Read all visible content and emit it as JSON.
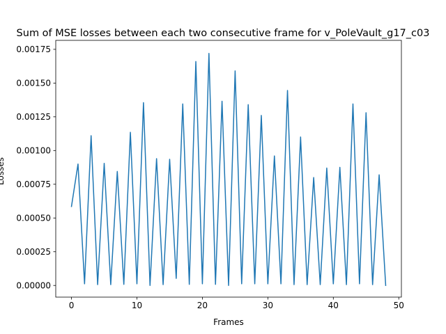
{
  "chart_data": {
    "type": "line",
    "title": "Sum of MSE losses between each two consecutive frame for v_PoleVault_g17_c03",
    "xlabel": "Frames",
    "ylabel": "Losses",
    "xlim": [
      -2.4,
      50.4
    ],
    "ylim": [
      -8.65e-05,
      0.0018165
    ],
    "xticks": [
      0,
      10,
      20,
      30,
      40,
      50
    ],
    "xtick_labels": [
      "0",
      "10",
      "20",
      "30",
      "40",
      "50"
    ],
    "yticks": [
      0,
      0.00025,
      0.0005,
      0.00075,
      0.001,
      0.00125,
      0.0015,
      0.00175
    ],
    "ytick_labels": [
      "0.00000",
      "0.00025",
      "0.00050",
      "0.00075",
      "0.00100",
      "0.00125",
      "0.00150",
      "0.00175"
    ],
    "grid": false,
    "color": "#1f77b4",
    "series": [
      {
        "x": [
          0,
          1,
          2,
          3,
          4,
          5,
          6,
          7,
          8,
          9,
          10,
          11,
          12,
          13,
          14,
          15,
          16,
          17,
          18,
          19,
          20,
          21,
          22,
          23,
          24,
          25,
          26,
          27,
          28,
          29,
          30,
          31,
          32,
          33,
          34,
          35,
          36,
          37,
          38,
          39,
          40,
          41,
          42,
          43,
          44,
          45,
          46,
          47,
          48
        ],
        "values": [
          0.000585,
          0.0009,
          1.2e-05,
          0.00111,
          6e-06,
          0.000905,
          6e-06,
          0.000845,
          8e-06,
          0.001135,
          1.2e-05,
          0.001355,
          0.0,
          0.00094,
          6e-06,
          0.000935,
          5.2e-05,
          0.001345,
          8e-06,
          0.00166,
          1.2e-05,
          0.00172,
          8e-06,
          0.001365,
          0.0,
          0.00159,
          1.2e-05,
          0.00134,
          1.2e-05,
          0.00126,
          1.2e-05,
          0.00096,
          1.2e-05,
          0.001445,
          6e-06,
          0.0011,
          6e-06,
          0.0008,
          6e-06,
          0.00087,
          1.2e-05,
          0.000875,
          6e-06,
          0.001345,
          1.2e-05,
          0.00128,
          6e-06,
          0.00082,
          0.0
        ]
      }
    ]
  }
}
